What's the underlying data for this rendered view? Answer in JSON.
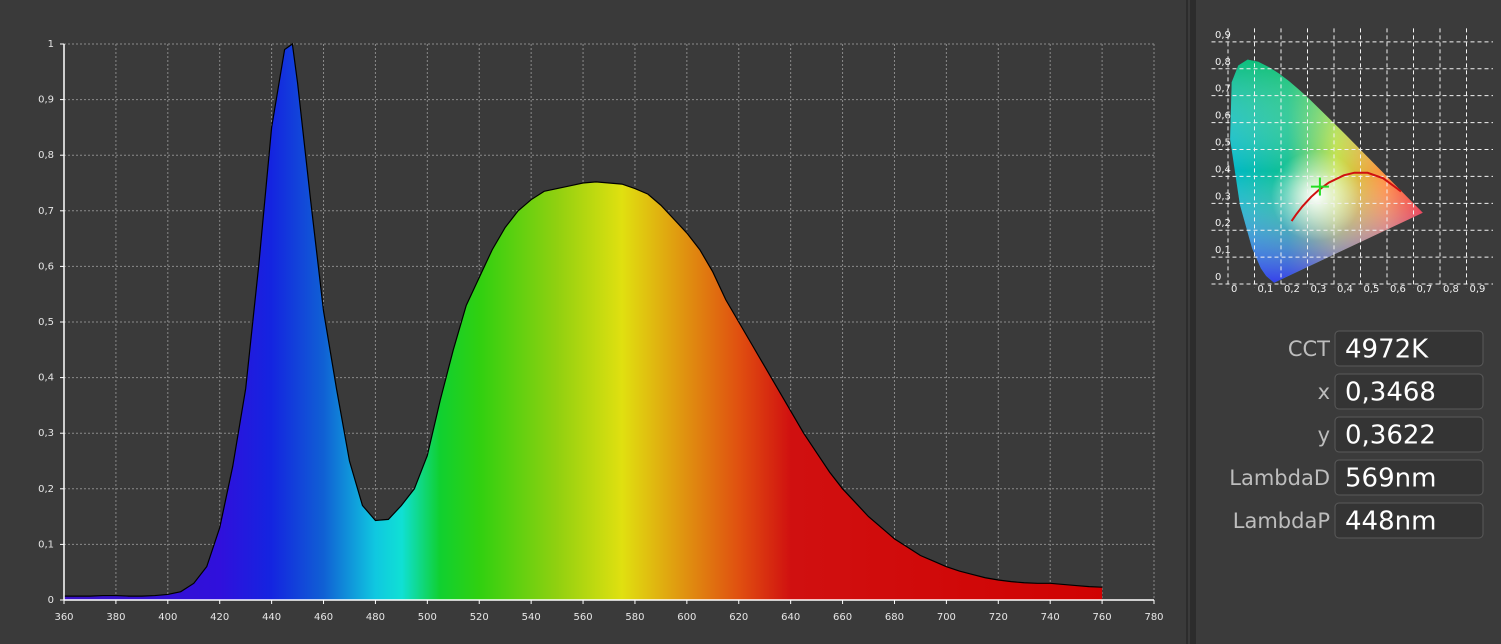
{
  "chart_data": [
    {
      "type": "area",
      "x": [
        360,
        365,
        370,
        375,
        380,
        385,
        390,
        395,
        400,
        405,
        410,
        415,
        420,
        425,
        430,
        435,
        440,
        445,
        448,
        450,
        455,
        460,
        465,
        470,
        475,
        480,
        485,
        490,
        495,
        500,
        505,
        510,
        515,
        520,
        525,
        530,
        535,
        540,
        545,
        550,
        555,
        560,
        565,
        570,
        575,
        580,
        585,
        590,
        595,
        600,
        605,
        610,
        615,
        620,
        625,
        630,
        635,
        640,
        645,
        650,
        655,
        660,
        665,
        670,
        675,
        680,
        685,
        690,
        695,
        700,
        705,
        710,
        715,
        720,
        725,
        730,
        735,
        740,
        745,
        750,
        755,
        760
      ],
      "values": [
        0.007,
        0.007,
        0.007,
        0.008,
        0.008,
        0.007,
        0.007,
        0.008,
        0.01,
        0.015,
        0.03,
        0.06,
        0.13,
        0.24,
        0.38,
        0.6,
        0.85,
        0.99,
        1.0,
        0.93,
        0.72,
        0.52,
        0.38,
        0.25,
        0.17,
        0.143,
        0.145,
        0.17,
        0.2,
        0.26,
        0.36,
        0.45,
        0.53,
        0.58,
        0.63,
        0.67,
        0.7,
        0.72,
        0.735,
        0.74,
        0.745,
        0.75,
        0.752,
        0.75,
        0.748,
        0.74,
        0.73,
        0.71,
        0.685,
        0.66,
        0.63,
        0.59,
        0.54,
        0.5,
        0.46,
        0.42,
        0.38,
        0.34,
        0.3,
        0.265,
        0.23,
        0.2,
        0.175,
        0.15,
        0.13,
        0.11,
        0.095,
        0.08,
        0.07,
        0.06,
        0.052,
        0.046,
        0.04,
        0.036,
        0.033,
        0.031,
        0.03,
        0.03,
        0.028,
        0.026,
        0.024,
        0.023
      ],
      "color": "#000000",
      "xlim": [
        360,
        780
      ],
      "ylim": [
        0,
        1
      ],
      "xticks": [
        360,
        380,
        400,
        420,
        440,
        460,
        480,
        500,
        520,
        540,
        560,
        580,
        600,
        620,
        640,
        660,
        680,
        700,
        720,
        740,
        760,
        780
      ],
      "yticks": [
        0,
        {
          "value": 0.1,
          "label": "0,1"
        },
        {
          "value": 0.2,
          "label": "0,2"
        },
        {
          "value": 0.3,
          "label": "0,3"
        },
        {
          "value": 0.4,
          "label": "0,4"
        },
        {
          "value": 0.5,
          "label": "0,5"
        },
        {
          "value": 0.6,
          "label": "0,6"
        },
        {
          "value": 0.7,
          "label": "0,7"
        },
        {
          "value": 0.8,
          "label": "0,8"
        },
        {
          "value": 0.9,
          "label": "0,9"
        },
        1
      ],
      "grid": true
    },
    {
      "type": "scatter",
      "x": [
        0.3468
      ],
      "values": [
        0.3622
      ],
      "color": "#22dd22",
      "xlim": [
        -0.1,
        1.0
      ],
      "ylim": [
        -0.05,
        0.95
      ],
      "xticks": [
        0,
        {
          "value": 0.1,
          "label": "0,1"
        },
        {
          "value": 0.2,
          "label": "0,2"
        },
        {
          "value": 0.3,
          "label": "0,3"
        },
        {
          "value": 0.4,
          "label": "0,4"
        },
        {
          "value": 0.5,
          "label": "0,5"
        },
        {
          "value": 0.6,
          "label": "0,6"
        },
        {
          "value": 0.7,
          "label": "0,7"
        },
        {
          "value": 0.8,
          "label": "0,8"
        },
        {
          "value": 0.9,
          "label": "0,9"
        }
      ],
      "yticks": [
        0,
        {
          "value": 0.1,
          "label": "0,1"
        },
        {
          "value": 0.2,
          "label": "0,2"
        },
        {
          "value": 0.3,
          "label": "0,3"
        },
        {
          "value": 0.4,
          "label": "0,4"
        },
        {
          "value": 0.5,
          "label": "0,5"
        },
        {
          "value": 0.6,
          "label": "0,6"
        },
        {
          "value": 0.7,
          "label": "0,7"
        },
        {
          "value": 0.8,
          "label": "0,8"
        },
        {
          "value": 0.9,
          "label": "0,9"
        }
      ],
      "grid": true
    }
  ],
  "readouts": [
    {
      "label": "CCT",
      "value": "4972K"
    },
    {
      "label": "x",
      "value": "0,3468"
    },
    {
      "label": "y",
      "value": "0,3622"
    },
    {
      "label": "LambdaD",
      "value": "569nm"
    },
    {
      "label": "LambdaP",
      "value": "448nm"
    }
  ]
}
